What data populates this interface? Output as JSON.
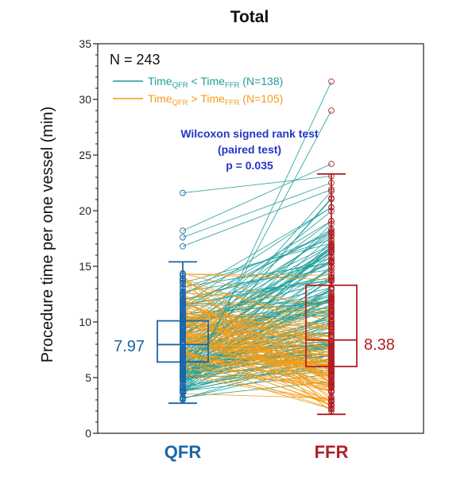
{
  "chart_data": {
    "type": "paired box plot",
    "title": "Total",
    "ylabel": "Procedure time per one vessel (min)",
    "ylim": [
      0,
      35
    ],
    "yticks": [
      0,
      5,
      10,
      15,
      20,
      25,
      30,
      35
    ],
    "categories": [
      "QFR",
      "FFR"
    ],
    "n_label": "N = 243",
    "legend": {
      "items": [
        {
          "main1": "Time",
          "sub1": "QFR",
          "op": " < ",
          "main2": "Time",
          "sub2": "FFR",
          "count": " (N=138)",
          "color": "#1f9e9b"
        },
        {
          "main1": "Time",
          "sub1": "QFR",
          "op": " > ",
          "main2": "Time",
          "sub2": "FFR",
          "count": " (N=105)",
          "color": "#f39c1a"
        }
      ],
      "placement": "top-left"
    },
    "annotation": {
      "lines": [
        "Wilcoxon signed rank test",
        "(paired test)",
        "p = 0.035"
      ],
      "color": "#2436c8"
    },
    "boxes": [
      {
        "name": "QFR",
        "median": 7.97,
        "median_label": "7.97",
        "q1": 6.4,
        "q3": 10.1,
        "whisker_low": 2.7,
        "whisker_high": 15.4,
        "color": "#1a66a8"
      },
      {
        "name": "FFR",
        "median": 8.38,
        "median_label": "8.38",
        "q1": 6.0,
        "q3": 13.3,
        "whisker_low": 1.7,
        "whisker_high": 23.3,
        "color": "#b01f24"
      }
    ],
    "pairs_highlighted": [
      {
        "qfr": 21.6,
        "ffr": 23.1
      },
      {
        "qfr": 3.0,
        "ffr": 31.6
      },
      {
        "qfr": 4.0,
        "ffr": 29.0
      },
      {
        "qfr": 18.2,
        "ffr": 24.2
      },
      {
        "qfr": 17.6,
        "ffr": 22.5
      },
      {
        "qfr": 16.8,
        "ffr": 21.9
      },
      {
        "qfr": 14.3,
        "ffr": 14.2
      },
      {
        "qfr": 14.3,
        "ffr": 13.8
      },
      {
        "qfr": 13.9,
        "ffr": 9.3
      }
    ],
    "counts": {
      "qfr_lt_ffr": 138,
      "qfr_gt_ffr": 105,
      "total": 243
    }
  }
}
